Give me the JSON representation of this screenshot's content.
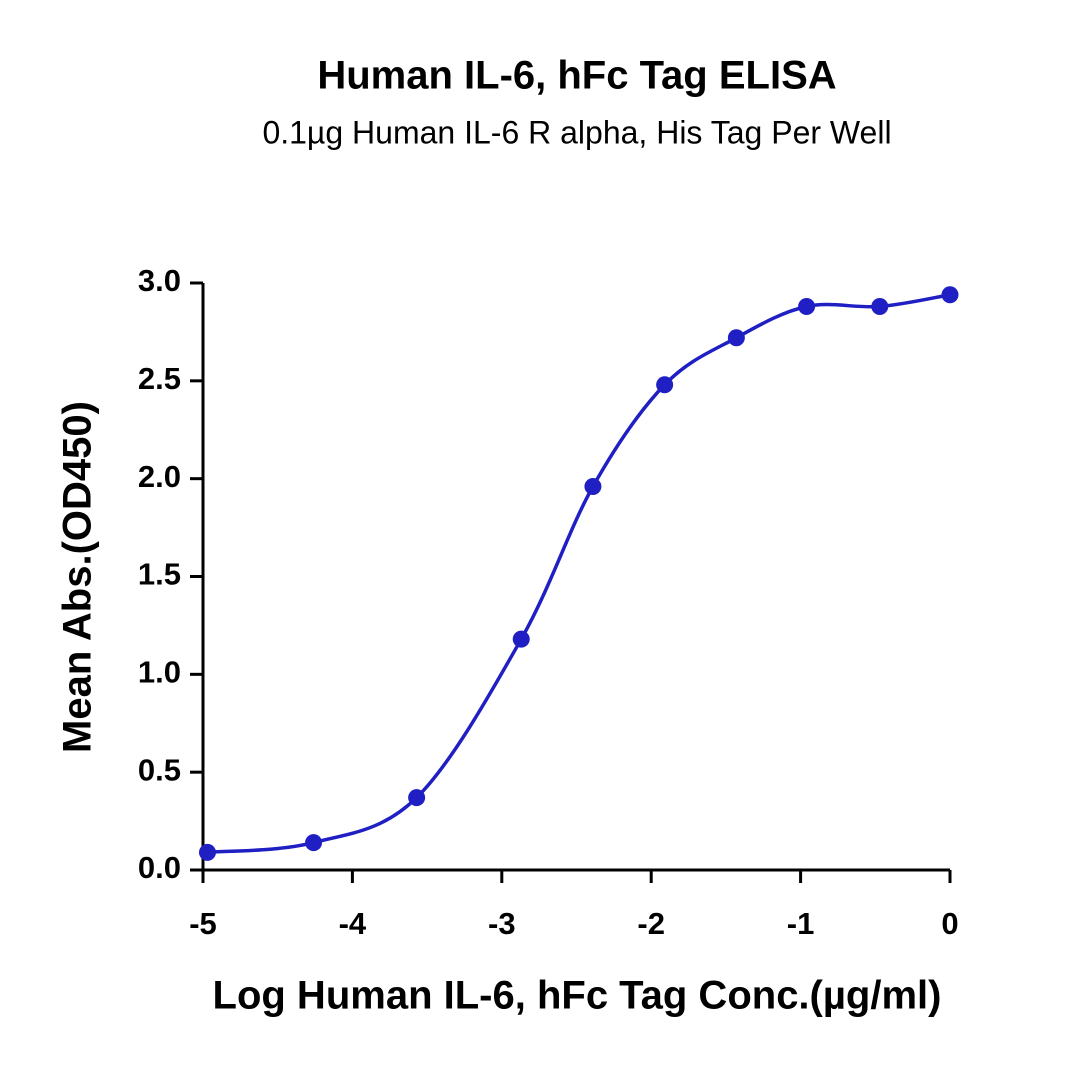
{
  "chart_data": {
    "type": "scatter",
    "title": "Human IL-6, hFc Tag ELISA",
    "subtitle": "0.1µg Human IL-6 R alpha, His Tag Per Well",
    "x_label": "Log Human IL-6, hFc Tag Conc.(µg/ml)",
    "y_label": "Mean Abs.(OD450)",
    "x": [
      0,
      -0.47,
      -0.96,
      -1.43,
      -1.91,
      -2.39,
      -2.87,
      -3.57,
      -4.26,
      -4.97
    ],
    "values": [
      2.94,
      2.88,
      2.88,
      2.72,
      2.48,
      1.96,
      1.18,
      0.37,
      0.14,
      0.09
    ],
    "color": "#1f1fc4",
    "xlim": [
      -5,
      0
    ],
    "xticks": [
      -5,
      -4,
      -3,
      -2,
      -1,
      0
    ],
    "ylim": [
      0,
      3.0
    ],
    "yticks": [
      {
        "value": 0,
        "label": "0.0"
      },
      0.5,
      {
        "value": 1,
        "label": "1.0"
      },
      1.5,
      {
        "value": 2,
        "label": "2.0"
      },
      2.5,
      {
        "value": 3,
        "label": "3.0"
      }
    ]
  }
}
